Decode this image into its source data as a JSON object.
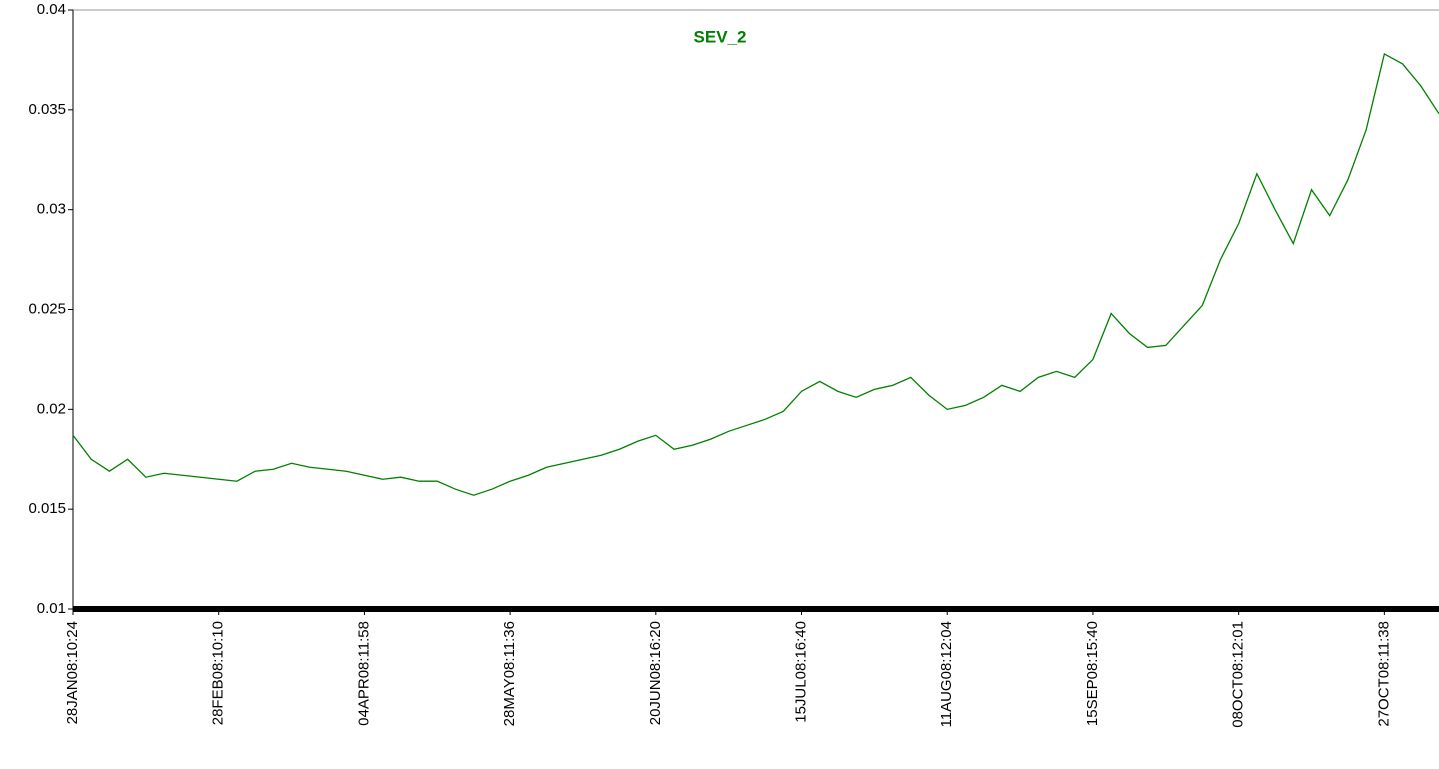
{
  "chart_data": {
    "type": "line",
    "title": "SEV_2",
    "categories": [
      "28JAN08:10:24",
      null,
      null,
      null,
      null,
      null,
      null,
      null,
      "28FEB08:10:10",
      null,
      null,
      null,
      null,
      null,
      null,
      null,
      "04APR08:11:58",
      null,
      null,
      null,
      null,
      null,
      null,
      null,
      "28MAY08:11:36",
      null,
      null,
      null,
      null,
      null,
      null,
      null,
      "20JUN08:16:20",
      null,
      null,
      null,
      null,
      null,
      null,
      null,
      "15JUL08:16:40",
      null,
      null,
      null,
      null,
      null,
      null,
      null,
      "11AUG08:12:04",
      null,
      null,
      null,
      null,
      null,
      null,
      null,
      "15SEP08:15:40",
      null,
      null,
      null,
      null,
      null,
      null,
      null,
      "08OCT08:12:01",
      null,
      null,
      null,
      null,
      null,
      null,
      null,
      "27OCT08:11:38",
      null,
      null,
      null
    ],
    "series": [
      {
        "name": "SEV_2",
        "color": "#008000",
        "values": [
          0.0187,
          0.0175,
          0.0169,
          0.0175,
          0.0166,
          0.0168,
          0.0167,
          0.0166,
          0.0165,
          0.0164,
          0.0169,
          0.017,
          0.0173,
          0.0171,
          0.017,
          0.0169,
          0.0167,
          0.0165,
          0.0166,
          0.0164,
          0.0164,
          0.016,
          0.0157,
          0.016,
          0.0164,
          0.0167,
          0.0171,
          0.0173,
          0.0175,
          0.0177,
          0.018,
          0.0184,
          0.0187,
          0.018,
          0.0182,
          0.0185,
          0.0189,
          0.0192,
          0.0195,
          0.0199,
          0.0209,
          0.0214,
          0.0209,
          0.0206,
          0.021,
          0.0212,
          0.0216,
          0.0207,
          0.02,
          0.0202,
          0.0206,
          0.0212,
          0.0209,
          0.0216,
          0.0219,
          0.0216,
          0.0225,
          0.0248,
          0.0238,
          0.0231,
          0.0232,
          0.0242,
          0.0252,
          0.0275,
          0.0293,
          0.0318,
          0.03,
          0.0283,
          0.031,
          0.0297,
          0.0315,
          0.034,
          0.0378,
          0.0373,
          0.0362,
          0.0348
        ]
      }
    ],
    "ylim": [
      0.01,
      0.04
    ],
    "yticks": [
      0.01,
      0.015,
      0.02,
      0.025,
      0.03,
      0.035,
      0.04
    ]
  }
}
